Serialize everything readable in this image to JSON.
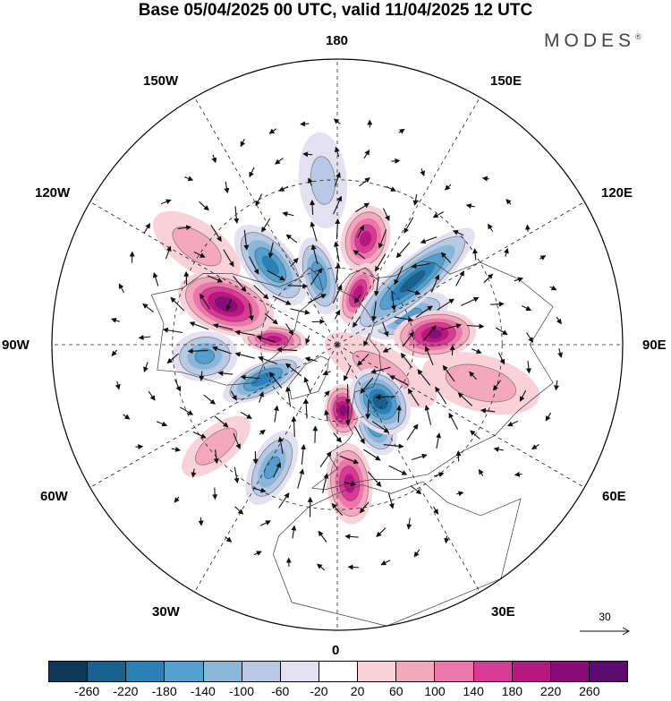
{
  "title": "Base 05/04/2025 00 UTC, valid 11/04/2025 12 UTC",
  "brand": "MODES",
  "brand_mark": "®",
  "longitude_labels": {
    "lon_180": "180",
    "lon_150e": "150E",
    "lon_120e": "120E",
    "lon_90e": "90E",
    "lon_60e": "60E",
    "lon_30e": "30E",
    "lon_0": "0",
    "lon_30w": "30W",
    "lon_60w": "60W",
    "lon_90w": "90W",
    "lon_120w": "120W",
    "lon_150w": "150W"
  },
  "reference_vector": {
    "value": "30"
  },
  "colorbar": {
    "colors": [
      "#0d3a5c",
      "#17628f",
      "#2b80b8",
      "#559fce",
      "#8ab6da",
      "#bac9e3",
      "#e3e1f0",
      "#ffffff",
      "#f8d2d8",
      "#f3a8bf",
      "#ec76aa",
      "#d93b94",
      "#b81680",
      "#8a0b79",
      "#5b0b6c"
    ],
    "ticks": [
      "-260",
      "-220",
      "-180",
      "-140",
      "-100",
      "-60",
      "-20",
      "20",
      "60",
      "100",
      "140",
      "180",
      "220",
      "260"
    ]
  },
  "map": {
    "projection": "north-polar-stereographic",
    "field": "geopotential height anomaly with wind vectors",
    "anomaly_centers": [
      {
        "lon": -165,
        "lat": 62,
        "value": -170,
        "rx": 9,
        "ry": 24
      },
      {
        "lon": -140,
        "lat": 50,
        "value": -190,
        "rx": 11,
        "ry": 28
      },
      {
        "lon": 165,
        "lat": 48,
        "value": 190,
        "rx": 11,
        "ry": 19
      },
      {
        "lon": 158,
        "lat": 68,
        "value": 200,
        "rx": 8,
        "ry": 20
      },
      {
        "lon": 130,
        "lat": 52,
        "value": -230,
        "rx": 10,
        "ry": 46
      },
      {
        "lon": 112,
        "lat": 60,
        "value": -160,
        "rx": 9,
        "ry": 26
      },
      {
        "lon": 96,
        "lat": 52,
        "value": 220,
        "rx": 11,
        "ry": 24
      },
      {
        "lon": 37,
        "lat": 62,
        "value": -240,
        "rx": 13,
        "ry": 22
      },
      {
        "lon": 25,
        "lat": 55,
        "value": -170,
        "rx": 9,
        "ry": 18
      },
      {
        "lon": 5,
        "lat": 64,
        "value": 230,
        "rx": 9,
        "ry": 16
      },
      {
        "lon": 5,
        "lat": 38,
        "value": 190,
        "rx": 10,
        "ry": 22
      },
      {
        "lon": -28,
        "lat": 38,
        "value": -150,
        "rx": 9,
        "ry": 22
      },
      {
        "lon": -50,
        "lat": 32,
        "value": 80,
        "rx": 8,
        "ry": 22
      },
      {
        "lon": -65,
        "lat": 58,
        "value": -210,
        "rx": 8,
        "ry": 26
      },
      {
        "lon": -85,
        "lat": 40,
        "value": -150,
        "rx": 11,
        "ry": 18
      },
      {
        "lon": -95,
        "lat": 65,
        "value": 190,
        "rx": 7,
        "ry": 20
      },
      {
        "lon": -110,
        "lat": 45,
        "value": 240,
        "rx": 13,
        "ry": 28
      },
      {
        "lon": 75,
        "lat": 35,
        "value": 80,
        "rx": 12,
        "ry": 32
      },
      {
        "lon": -125,
        "lat": 28,
        "value": 70,
        "rx": 10,
        "ry": 26
      },
      {
        "lon": 60,
        "lat": 70,
        "value": 60,
        "rx": 12,
        "ry": 40
      },
      {
        "lon": -175,
        "lat": 30,
        "value": -60,
        "rx": 10,
        "ry": 25
      }
    ]
  }
}
